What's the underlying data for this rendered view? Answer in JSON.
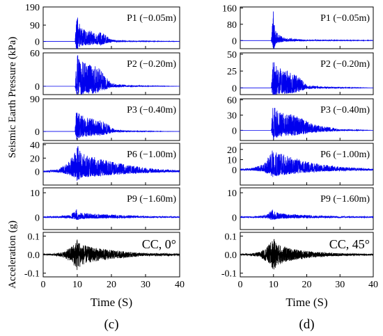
{
  "y_label_pressure": "Seismic Earth Pressure (kPa)",
  "y_label_acceleration": "Acceleration (g)",
  "colors": {
    "pressure": "#0000ee",
    "acceleration": "#000000",
    "axes": "#000000"
  },
  "chart_data": [
    {
      "type": "line",
      "panel_label": "(c)",
      "xlabel": "Time (S)",
      "xlim": [
        0,
        40
      ],
      "xticks": [
        0,
        10,
        20,
        30,
        40
      ],
      "grid": false,
      "subplots": [
        {
          "annotation": "P1 (−0.05m)",
          "ylim": [
            -40,
            190
          ],
          "yticks": [
            0,
            90,
            190
          ],
          "color": "#0000ee",
          "series": [
            {
              "x": [
                0,
                9.3,
                9.8,
                10.0,
                10.5,
                11.0,
                12.5,
                13.5,
                15.0,
                17.0,
                20.0,
                25.0,
                30.0,
                40.0
              ],
              "y": [
                0,
                0,
                140,
                190,
                120,
                80,
                60,
                65,
                50,
                55,
                10,
                3,
                2,
                1
              ]
            }
          ]
        },
        {
          "annotation": "P2 (−0.20m)",
          "ylim": [
            -15,
            60
          ],
          "yticks": [
            0,
            60
          ],
          "color": "#0000ee",
          "series": [
            {
              "x": [
                0,
                9.3,
                9.8,
                10.0,
                10.5,
                11.5,
                13.0,
                14.5,
                16.0,
                18.0,
                20.0,
                25.0,
                30.0,
                40.0
              ],
              "y": [
                0,
                0,
                50,
                62,
                48,
                45,
                40,
                38,
                35,
                20,
                5,
                2,
                1,
                0
              ]
            }
          ]
        },
        {
          "annotation": "P3 (−0.40m)",
          "ylim": [
            -25,
            90
          ],
          "yticks": [
            0,
            90
          ],
          "color": "#0000ee",
          "series": [
            {
              "x": [
                0,
                9.3,
                9.8,
                10.0,
                10.5,
                11.5,
                13.0,
                15.0,
                17.0,
                19.0,
                21.0,
                25.0,
                30.0,
                40.0
              ],
              "y": [
                0,
                0,
                70,
                85,
                55,
                45,
                40,
                35,
                30,
                20,
                5,
                2,
                1,
                0
              ]
            }
          ]
        },
        {
          "annotation": "P6 (−1.00m)",
          "ylim": [
            -20,
            42
          ],
          "yticks": [
            0,
            20,
            40
          ],
          "color": "#0000ee",
          "series": [
            {
              "x": [
                0,
                4.0,
                7.0,
                9.0,
                10.0,
                11.0,
                13.0,
                16.0,
                20.0,
                25.0,
                30.0,
                35.0,
                40.0
              ],
              "y": [
                1,
                3,
                12,
                25,
                40,
                30,
                25,
                20,
                15,
                10,
                6,
                3,
                2
              ]
            }
          ]
        },
        {
          "annotation": "P9 (−1.60m)",
          "ylim": [
            -5,
            12
          ],
          "yticks": [
            0,
            10
          ],
          "color": "#0000ee",
          "series": [
            {
              "x": [
                0,
                5.0,
                8.0,
                9.5,
                10.0,
                11.0,
                14.0,
                18.0,
                22.0,
                26.0,
                30.0,
                40.0
              ],
              "y": [
                0.3,
                0.5,
                1.0,
                3.0,
                3.5,
                2.0,
                1.5,
                1.2,
                1.0,
                0.8,
                0.5,
                0.3
              ]
            }
          ]
        },
        {
          "annotation": "CC, 0°",
          "ylim": [
            -0.12,
            0.12
          ],
          "yticks": [
            -0.1,
            0.0,
            0.1
          ],
          "color": "#000000",
          "series": [
            {
              "x": [
                0,
                3.0,
                6.0,
                8.0,
                9.5,
                10.0,
                11.0,
                13.0,
                16.0,
                20.0,
                25.0,
                30.0,
                40.0
              ],
              "y": [
                0.003,
                0.005,
                0.015,
                0.04,
                0.07,
                0.09,
                0.06,
                0.045,
                0.035,
                0.025,
                0.015,
                0.008,
                0.005
              ]
            }
          ]
        }
      ]
    },
    {
      "type": "line",
      "panel_label": "(d)",
      "xlabel": "Time (S)",
      "xlim": [
        0,
        40
      ],
      "xticks": [
        0,
        10,
        20,
        30,
        40
      ],
      "grid": false,
      "subplots": [
        {
          "annotation": "P1 (−0.05m)",
          "ylim": [
            -40,
            165
          ],
          "yticks": [
            0,
            80,
            160
          ],
          "color": "#0000ee",
          "series": [
            {
              "x": [
                0,
                9.3,
                9.8,
                10.0,
                10.5,
                11.0,
                12.0,
                14.0,
                16.0,
                18.0,
                20.0,
                25.0,
                30.0,
                40.0
              ],
              "y": [
                0,
                0,
                120,
                160,
                60,
                40,
                25,
                12,
                10,
                6,
                4,
                3,
                2,
                1
              ]
            }
          ]
        },
        {
          "annotation": "P2 (−0.20m)",
          "ylim": [
            -10,
            52
          ],
          "yticks": [
            0,
            25,
            50
          ],
          "color": "#0000ee",
          "series": [
            {
              "x": [
                0,
                9.3,
                9.8,
                10.0,
                10.5,
                11.5,
                13.0,
                14.5,
                16.0,
                18.0,
                20.0,
                25.0,
                30.0,
                40.0
              ],
              "y": [
                0,
                0,
                40,
                45,
                35,
                30,
                28,
                25,
                22,
                15,
                4,
                2,
                1,
                0
              ]
            }
          ]
        },
        {
          "annotation": "P3 (−0.40m)",
          "ylim": [
            -20,
            62
          ],
          "yticks": [
            0,
            30,
            60
          ],
          "color": "#0000ee",
          "series": [
            {
              "x": [
                0,
                9.3,
                9.8,
                10.0,
                10.5,
                11.5,
                13.0,
                15.0,
                17.0,
                19.0,
                22.0,
                25.0,
                28.0,
                30.0,
                40.0
              ],
              "y": [
                0,
                0,
                50,
                58,
                42,
                38,
                35,
                32,
                28,
                22,
                12,
                8,
                5,
                2,
                0
              ]
            }
          ]
        },
        {
          "annotation": "P6 (−1.00m)",
          "ylim": [
            -15,
            26
          ],
          "yticks": [
            0,
            10,
            20
          ],
          "color": "#0000ee",
          "series": [
            {
              "x": [
                0,
                4.0,
                7.0,
                9.0,
                10.0,
                11.0,
                13.0,
                16.0,
                20.0,
                25.0,
                30.0,
                35.0,
                40.0
              ],
              "y": [
                1,
                2,
                6,
                15,
                22,
                18,
                15,
                12,
                8,
                5,
                3,
                2,
                1
              ]
            }
          ]
        },
        {
          "annotation": "P9 (−1.60m)",
          "ylim": [
            -5,
            12
          ],
          "yticks": [
            0,
            10
          ],
          "color": "#0000ee",
          "series": [
            {
              "x": [
                0,
                5.0,
                8.0,
                9.5,
                10.0,
                11.0,
                14.0,
                18.0,
                22.0,
                26.0,
                30.0,
                40.0
              ],
              "y": [
                0.3,
                0.4,
                1.0,
                3.5,
                3.0,
                2.0,
                1.3,
                1.0,
                0.8,
                0.6,
                0.4,
                0.3
              ]
            }
          ]
        },
        {
          "annotation": "CC, 45°",
          "ylim": [
            -0.12,
            0.12
          ],
          "yticks": [
            -0.1,
            0.0,
            0.1
          ],
          "color": "#000000",
          "series": [
            {
              "x": [
                0,
                3.0,
                6.0,
                8.0,
                9.5,
                10.0,
                11.0,
                13.0,
                16.0,
                20.0,
                25.0,
                30.0,
                40.0
              ],
              "y": [
                0.003,
                0.005,
                0.015,
                0.04,
                0.075,
                0.09,
                0.06,
                0.045,
                0.03,
                0.02,
                0.012,
                0.007,
                0.004
              ]
            }
          ]
        }
      ]
    }
  ]
}
